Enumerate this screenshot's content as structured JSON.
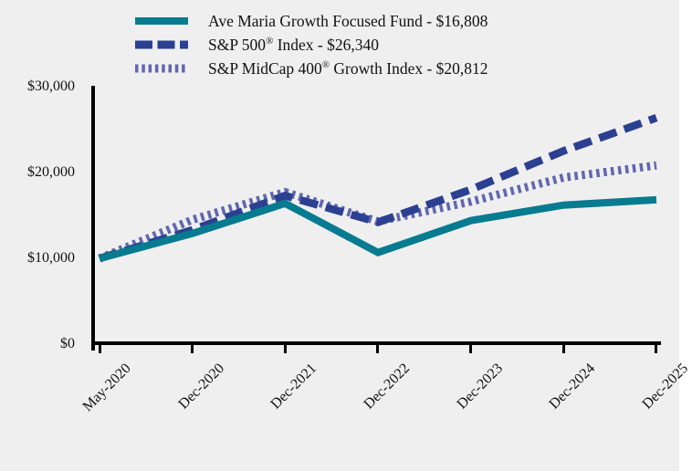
{
  "chart_data": {
    "type": "line",
    "title": "",
    "x_categories": [
      "May-2020",
      "Dec-2020",
      "Dec-2021",
      "Dec-2022",
      "Dec-2023",
      "Dec-2024",
      "Dec-2025"
    ],
    "y_ticks_top_to_bottom": [
      "$30,000",
      "$20,000",
      "$10,000",
      "$0"
    ],
    "ylim": [
      0,
      30000
    ],
    "x_label_rotation_deg": 45,
    "grid": false,
    "legend_position": "top",
    "background_color": "#efefef",
    "axis_color": "#000000",
    "series": [
      {
        "name": "Ave Maria Growth Focused Fund",
        "legend_label_pre": "Ave Maria Growth Focused Fund - $16,808",
        "legend_label_reg": "",
        "legend_label_post": "",
        "final_value_label": "$16,808",
        "style": "solid",
        "color": "#077b8f",
        "values": [
          10000,
          12900,
          16400,
          10700,
          14400,
          16200,
          16808
        ]
      },
      {
        "name": "S&P 500 Index",
        "legend_label_pre": "S&P 500",
        "legend_label_reg": "®",
        "legend_label_post": " Index - $26,340",
        "final_value_label": "$26,340",
        "style": "dashed",
        "color": "#2c4092",
        "values": [
          10000,
          13300,
          17300,
          14200,
          18000,
          22500,
          26340
        ]
      },
      {
        "name": "S&P MidCap 400 Growth Index",
        "legend_label_pre": "S&P MidCap 400",
        "legend_label_reg": "®",
        "legend_label_post": " Growth Index - $20,812",
        "final_value_label": "$20,812",
        "style": "dotted",
        "color": "#6067ae",
        "values": [
          10000,
          14500,
          17700,
          14300,
          16600,
          19400,
          20812
        ]
      }
    ]
  }
}
